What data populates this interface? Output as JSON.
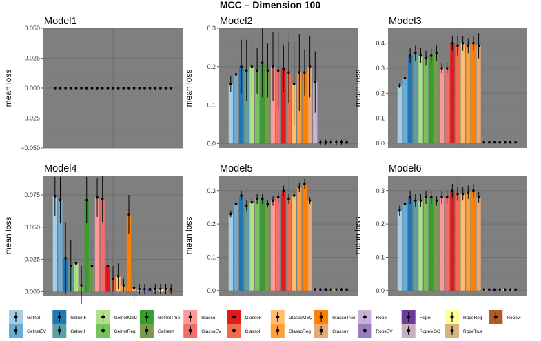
{
  "chart_data": {
    "type": "bar",
    "title": "MCC – Dimension 100",
    "ylabel": "mean loss",
    "methods": [
      "Gelnet",
      "GelnetEV",
      "GelnetF",
      "GelnetI",
      "GelnetMSC",
      "GelnetReg",
      "GelnetTrue",
      "Gelnetvl",
      "Glasso",
      "GlassoEV",
      "GlassoF",
      "GlassoI",
      "GlassoMSC",
      "GlassoReg",
      "GlassoTrue",
      "Glassovl",
      "Rope",
      "RopeEV",
      "RopeI",
      "RopeMSC",
      "RopeReg",
      "RopeTrue",
      "Ropevl"
    ],
    "colors": [
      "#a6cee3",
      "#6aaed6",
      "#1f78b4",
      "#5aa0a6",
      "#b2df8a",
      "#78c25e",
      "#33a02c",
      "#7a9a4c",
      "#fb9a99",
      "#f46d6b",
      "#e31a1c",
      "#f26b4c",
      "#fdbf6f",
      "#fd9f3a",
      "#ff7f00",
      "#e8a873",
      "#cab2d6",
      "#9b7cc0",
      "#6a3d9a",
      "#c7aec0",
      "#ffff99",
      "#d6b47e",
      "#b15928"
    ],
    "legend": {
      "row1": [
        "Gelnet",
        "GelnetF",
        "GelnetMSC",
        "GelnetTrue",
        "Glasso",
        "GlassoF",
        "GlassoMSC",
        "GlassoTrue",
        "Rope",
        "RopeI",
        "RopeReg",
        "Ropevl"
      ],
      "row2": [
        "GelnetEV",
        "GelnetI",
        "GelnetReg",
        "Gelnetvl",
        "GlassoEV",
        "GlassoI",
        "GlassoReg",
        "Glassovl",
        "RopeEV",
        "RopeMSC",
        "RopeTrue"
      ]
    },
    "panels": [
      {
        "name": "Model1",
        "ylim": [
          -0.05,
          0.05
        ],
        "yticks": [
          -0.05,
          -0.025,
          0,
          0.025,
          0.05
        ],
        "ytick_labels": [
          "−0.050",
          "−0.025",
          "0.000",
          "0.025",
          "0.050"
        ],
        "values": [
          0,
          0,
          0,
          0,
          0,
          0,
          0,
          0,
          0,
          0,
          0,
          0,
          0,
          0,
          0,
          0,
          0,
          0,
          0,
          0,
          0,
          0,
          0
        ],
        "err": [
          0,
          0,
          0,
          0,
          0,
          0,
          0,
          0,
          0,
          0,
          0,
          0,
          0,
          0,
          0,
          0,
          0,
          0,
          0,
          0,
          0,
          0,
          0
        ],
        "bars": false
      },
      {
        "name": "Model2",
        "ylim": [
          -0.012,
          0.3
        ],
        "yticks": [
          0,
          0.1,
          0.2,
          0.3
        ],
        "ytick_labels": [
          "0.0",
          "0.1",
          "0.2",
          "0.3"
        ],
        "values": [
          0.155,
          0.18,
          0.2,
          0.19,
          0.2,
          0.19,
          0.21,
          0.19,
          0.2,
          0.19,
          0.195,
          0.185,
          0.155,
          0.185,
          0.185,
          0.2,
          0.16,
          0.003,
          0.003,
          0.003,
          0.003,
          0.003,
          0.003
        ],
        "err": [
          0.02,
          0.05,
          0.07,
          0.08,
          0.08,
          0.06,
          0.09,
          0.07,
          0.09,
          0.1,
          0.06,
          0.08,
          0.11,
          0.1,
          0.06,
          0.08,
          0.08,
          0.007,
          0.007,
          0.007,
          0.007,
          0.007,
          0.007
        ],
        "bars": true
      },
      {
        "name": "Model3",
        "ylim": [
          -0.02,
          0.46
        ],
        "yticks": [
          0,
          0.1,
          0.2,
          0.3,
          0.4
        ],
        "ytick_labels": [
          "0.0",
          "0.1",
          "0.2",
          "0.3",
          "0.4"
        ],
        "values": [
          0.23,
          0.26,
          0.35,
          0.36,
          0.35,
          0.34,
          0.35,
          0.36,
          0.3,
          0.3,
          0.4,
          0.39,
          0.4,
          0.39,
          0.4,
          0.39,
          0.003,
          0.003,
          0.003,
          0.003,
          0.003,
          0.003,
          0.003
        ],
        "err": [
          0.01,
          0.02,
          0.03,
          0.03,
          0.03,
          0.03,
          0.03,
          0.03,
          0.02,
          0.02,
          0.03,
          0.04,
          0.03,
          0.03,
          0.03,
          0.05,
          0.003,
          0.003,
          0.003,
          0.003,
          0.003,
          0.003,
          0.003
        ],
        "bars": true
      },
      {
        "name": "Model4",
        "ylim": [
          -0.003,
          0.09
        ],
        "yticks": [
          0,
          0.025,
          0.05,
          0.075
        ],
        "ytick_labels": [
          "0.000",
          "0.025",
          "0.050",
          "0.075"
        ],
        "values": [
          0.074,
          0.071,
          0.026,
          0.02,
          0.022,
          0.005,
          0.071,
          0.02,
          0.073,
          0.072,
          0.02,
          0.01,
          0.012,
          0.005,
          0.06,
          0.003,
          0.002,
          0.002,
          0.002,
          0.002,
          0.002,
          0.002,
          0.002
        ],
        "err": [
          0.015,
          0.018,
          0.028,
          0.02,
          0.02,
          0.015,
          0.018,
          0.02,
          0.015,
          0.018,
          0.02,
          0.01,
          0.01,
          0.005,
          0.015,
          0.01,
          0.004,
          0.004,
          0.004,
          0.004,
          0.004,
          0.004,
          0.004
        ],
        "bars": true
      },
      {
        "name": "Model5",
        "ylim": [
          -0.015,
          0.345
        ],
        "yticks": [
          0,
          0.1,
          0.2,
          0.3
        ],
        "ytick_labels": [
          "0.0",
          "0.1",
          "0.2",
          "0.3"
        ],
        "values": [
          0.23,
          0.26,
          0.285,
          0.255,
          0.265,
          0.275,
          0.275,
          0.26,
          0.27,
          0.28,
          0.3,
          0.275,
          0.285,
          0.31,
          0.32,
          0.27,
          0.003,
          0.003,
          0.003,
          0.003,
          0.003,
          0.003,
          0.003
        ],
        "err": [
          0.01,
          0.015,
          0.015,
          0.015,
          0.015,
          0.015,
          0.015,
          0.01,
          0.015,
          0.015,
          0.015,
          0.015,
          0.015,
          0.015,
          0.015,
          0.01,
          0.005,
          0.005,
          0.005,
          0.005,
          0.005,
          0.005,
          0.005
        ],
        "bars": true
      },
      {
        "name": "Model6",
        "ylim": [
          -0.015,
          0.345
        ],
        "yticks": [
          0,
          0.1,
          0.2,
          0.3
        ],
        "ytick_labels": [
          "0.0",
          "0.1",
          "0.2",
          "0.3"
        ],
        "values": [
          0.24,
          0.26,
          0.28,
          0.27,
          0.27,
          0.28,
          0.28,
          0.27,
          0.28,
          0.28,
          0.3,
          0.29,
          0.29,
          0.295,
          0.3,
          0.28,
          0.003,
          0.003,
          0.003,
          0.003,
          0.003,
          0.003,
          0.003
        ],
        "err": [
          0.015,
          0.02,
          0.02,
          0.02,
          0.02,
          0.02,
          0.02,
          0.015,
          0.02,
          0.02,
          0.02,
          0.02,
          0.02,
          0.02,
          0.02,
          0.015,
          0.003,
          0.003,
          0.003,
          0.003,
          0.003,
          0.003,
          0.003
        ],
        "bars": true
      }
    ]
  }
}
